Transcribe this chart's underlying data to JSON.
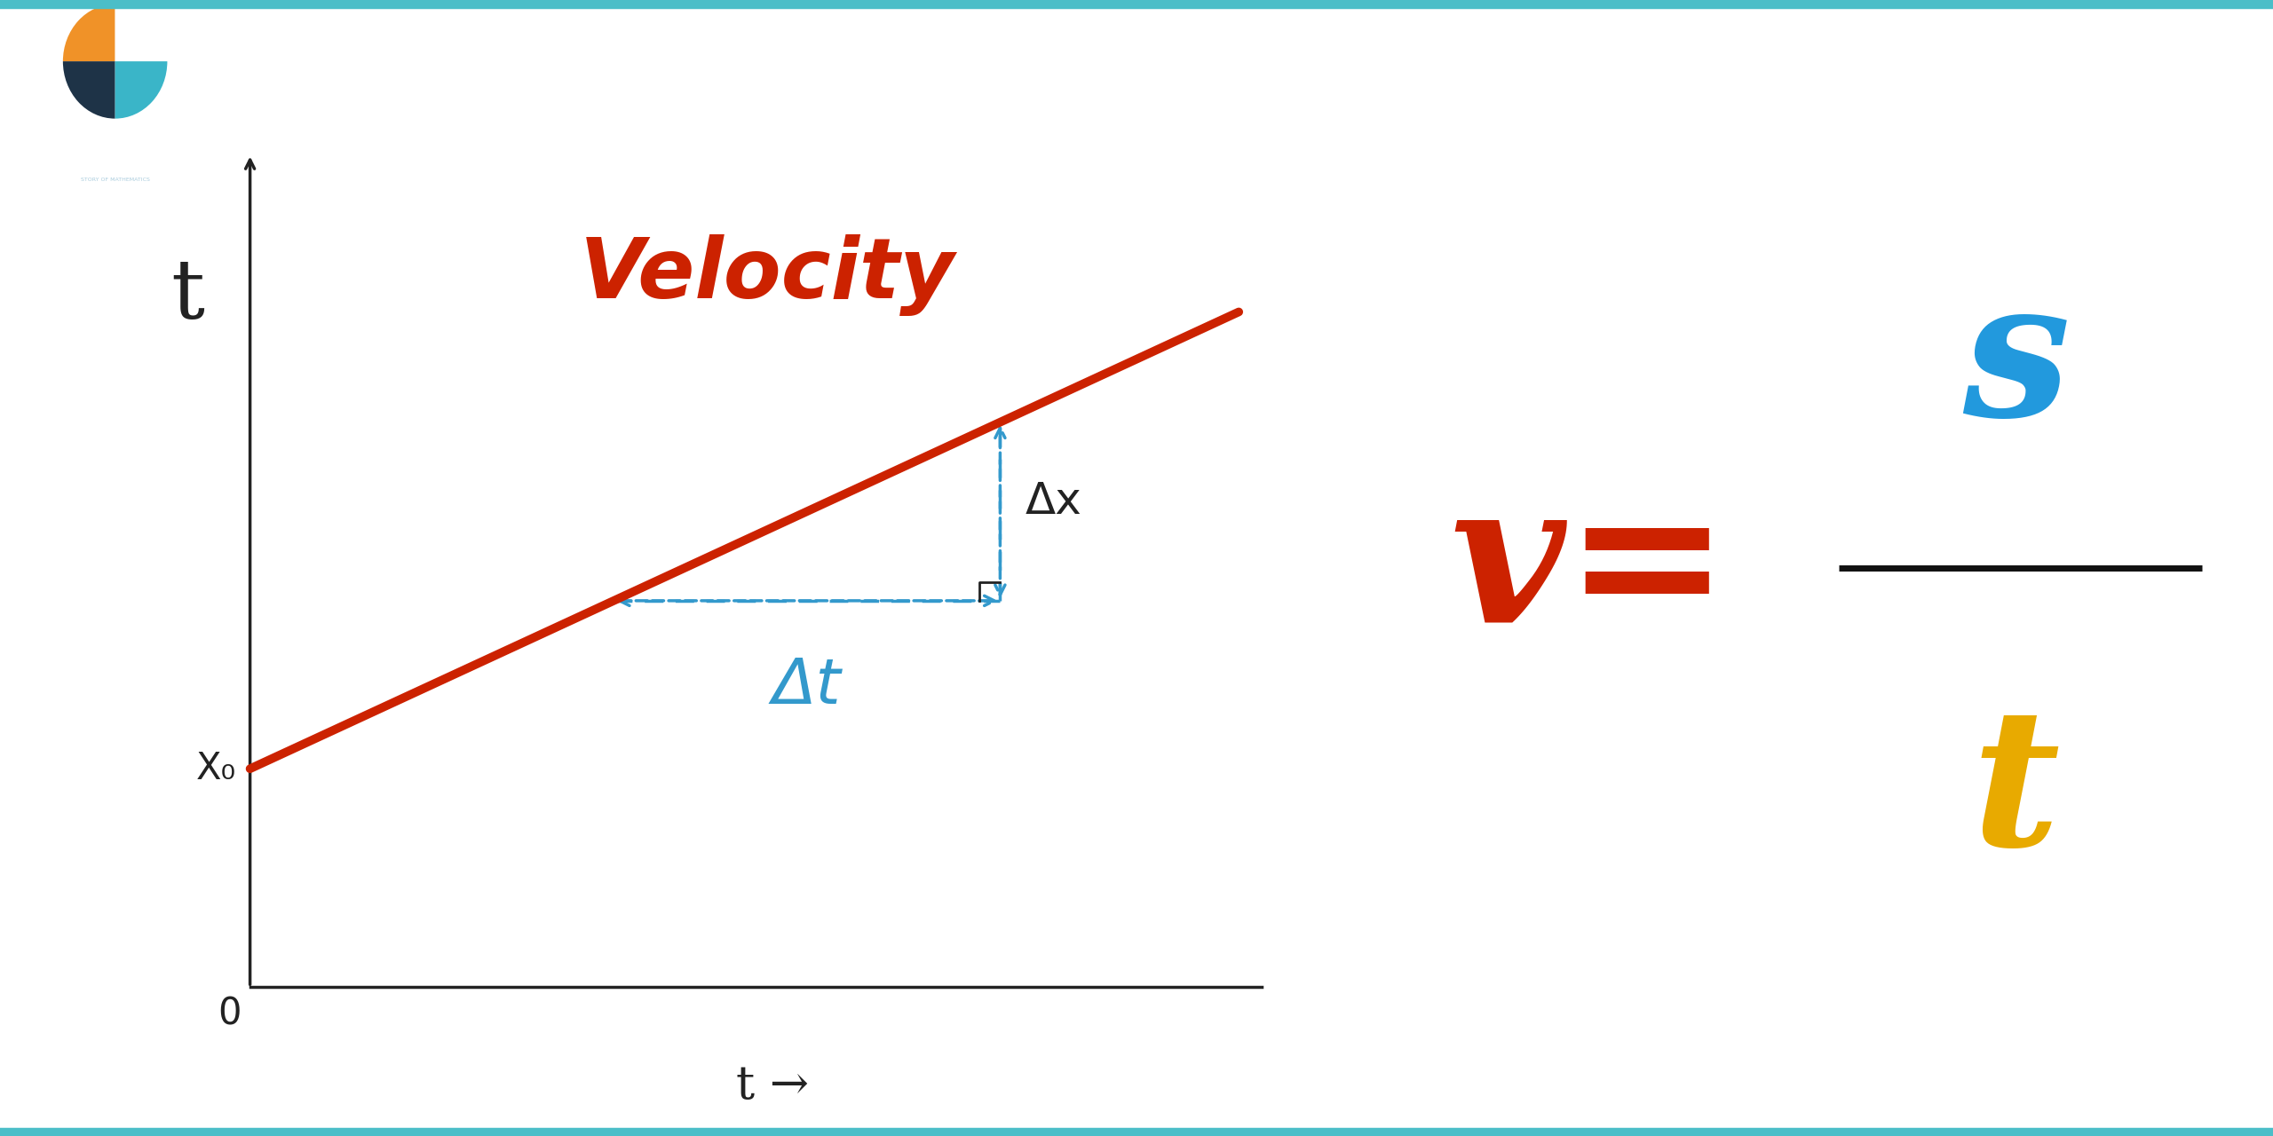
{
  "bg_color": "#ffffff",
  "border_color": "#4bbec8",
  "logo_bg_color": "#1e3347",
  "graph_line_color": "#cc2200",
  "dashed_line_color": "#3399cc",
  "axis_color": "#222222",
  "velocity_label_color": "#cc2200",
  "velocity_label": "Velocity",
  "x0_label": "X₀",
  "zero_label": "0",
  "delta_x_label": "Δx",
  "delta_t_label": "Δt",
  "t_axis_label": "t",
  "t_arrow_label": "t →",
  "formula_v_color": "#cc2200",
  "formula_s_color": "#2299dd",
  "formula_t_color": "#e8aa00",
  "formula_line_color": "#111111",
  "logo_orange": "#f09228",
  "logo_blue": "#3ab5c8",
  "logo_white": "#ffffff",
  "logo_dark": "#1e3347",
  "border_thickness": 14
}
